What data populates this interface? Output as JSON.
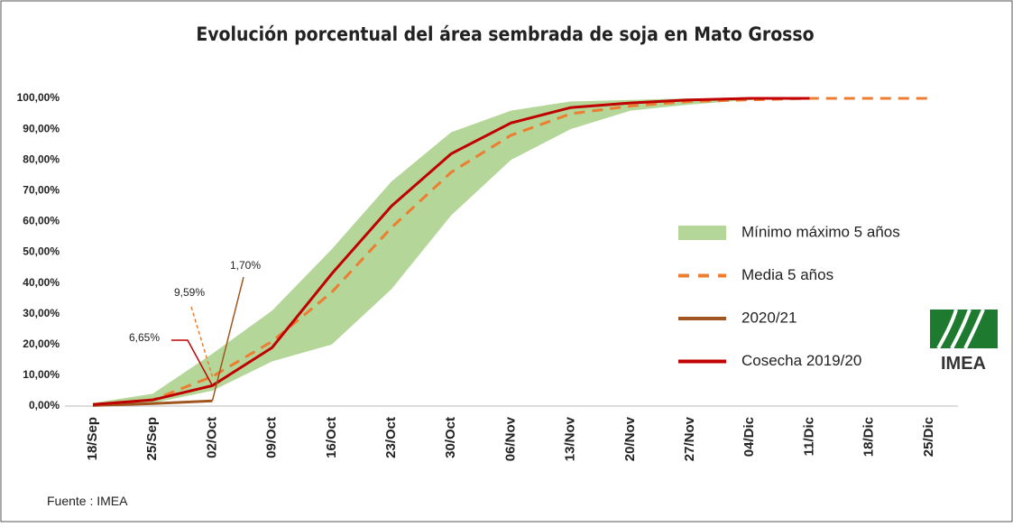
{
  "chart_data": {
    "type": "line",
    "title": "Evolución porcentual del área sembrada de soja en Mato Grosso",
    "source": "Fuente : IMEA",
    "logo_text": "IMEA",
    "categories": [
      "18/Sep",
      "25/Sep",
      "02/Oct",
      "09/Oct",
      "16/Oct",
      "23/Oct",
      "30/Oct",
      "06/Nov",
      "13/Nov",
      "20/Nov",
      "27/Nov",
      "04/Dic",
      "11/Dic",
      "18/Dic",
      "25/Dic"
    ],
    "ylim": [
      0,
      100
    ],
    "yticks": [
      {
        "value": 0,
        "label": "0,00%"
      },
      {
        "value": 10,
        "label": "10,00%"
      },
      {
        "value": 20,
        "label": "20,00%"
      },
      {
        "value": 30,
        "label": "30,00%"
      },
      {
        "value": 40,
        "label": "40,00%"
      },
      {
        "value": 50,
        "label": "50,00%"
      },
      {
        "value": 60,
        "label": "60,00%"
      },
      {
        "value": 70,
        "label": "70,00%"
      },
      {
        "value": 80,
        "label": "80,00%"
      },
      {
        "value": 90,
        "label": "90,00%"
      },
      {
        "value": 100,
        "label": "100,00%"
      }
    ],
    "series": [
      {
        "name": "Mínimo máximo 5 años",
        "color": "#b4d698",
        "kind": "band",
        "low": [
          0,
          1,
          5,
          14.5,
          20,
          38,
          62,
          80,
          90,
          96,
          98,
          99.5,
          100,
          null,
          null
        ],
        "values": [
          1,
          4,
          17,
          31,
          51,
          73,
          89,
          96,
          99,
          99.5,
          100,
          100,
          100,
          null,
          null
        ]
      },
      {
        "name": "Media 5 años",
        "color": "#ed7d31",
        "kind": "dashed",
        "values": [
          0.5,
          2,
          9.59,
          21,
          37,
          58,
          76,
          88,
          95,
          97.5,
          99,
          99.5,
          100,
          100,
          100
        ],
        "value_labels": [
          null,
          null,
          "9,59%",
          null,
          null,
          null,
          null,
          null,
          null,
          null,
          null,
          null,
          null,
          null,
          null
        ]
      },
      {
        "name": "2020/21",
        "color": "#a0561e",
        "kind": "solid",
        "values": [
          0.2,
          0.8,
          1.7,
          null,
          null,
          null,
          null,
          null,
          null,
          null,
          null,
          null,
          null,
          null,
          null
        ],
        "value_labels": [
          null,
          null,
          "1,70%",
          null,
          null,
          null,
          null,
          null,
          null,
          null,
          null,
          null,
          null,
          null,
          null
        ]
      },
      {
        "name": "Cosecha 2019/20",
        "color": "#c00000",
        "kind": "solid",
        "values": [
          0.5,
          2,
          6.65,
          19,
          43,
          65,
          82,
          92,
          97,
          98.5,
          99.5,
          100,
          100,
          null,
          null
        ],
        "value_labels": [
          null,
          null,
          "6,65%",
          null,
          null,
          null,
          null,
          null,
          null,
          null,
          null,
          null,
          null,
          null,
          null
        ]
      }
    ]
  }
}
